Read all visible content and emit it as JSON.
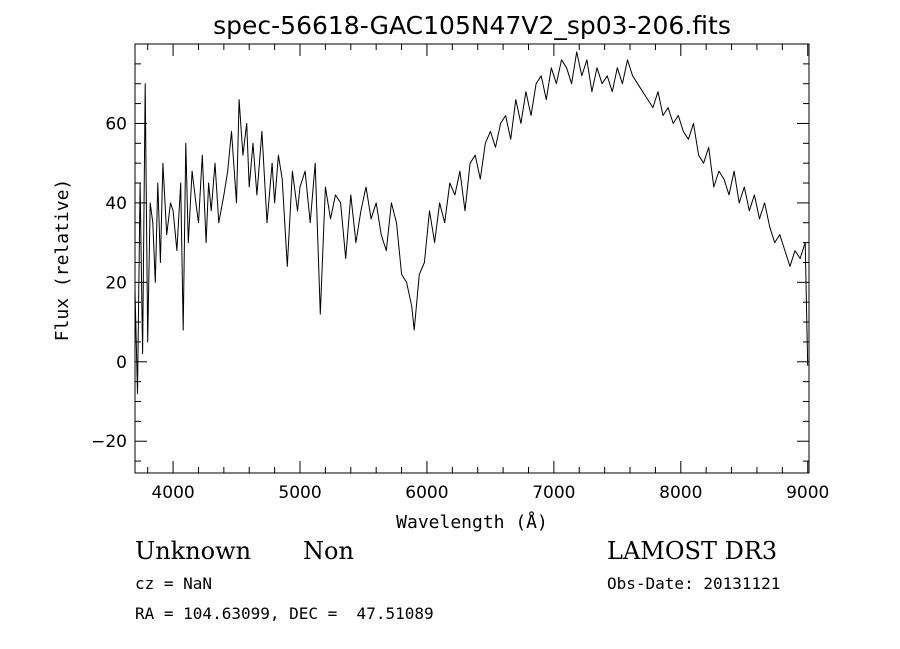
{
  "chart_data": {
    "type": "line",
    "title": "spec-56618-GAC105N47V2_sp03-206.fits",
    "xlabel": "Wavelength (Å)",
    "ylabel": "Flux (relative)",
    "xlim": [
      3700,
      9010
    ],
    "ylim": [
      -28,
      80
    ],
    "xticks": [
      4000,
      5000,
      6000,
      7000,
      8000,
      9000
    ],
    "yticks": [
      -20,
      0,
      20,
      40,
      60
    ],
    "grid": false,
    "series": [
      {
        "x": [
          3700,
          3720,
          3740,
          3760,
          3780,
          3800,
          3820,
          3840,
          3860,
          3880,
          3900,
          3920,
          3950,
          3980,
          4000,
          4030,
          4060,
          4080,
          4100,
          4120,
          4150,
          4180,
          4200,
          4230,
          4260,
          4280,
          4300,
          4330,
          4360,
          4400,
          4430,
          4460,
          4500,
          4520,
          4550,
          4580,
          4600,
          4630,
          4660,
          4700,
          4740,
          4780,
          4800,
          4830,
          4860,
          4900,
          4940,
          4980,
          5000,
          5040,
          5080,
          5120,
          5160,
          5200,
          5240,
          5280,
          5320,
          5360,
          5400,
          5440,
          5480,
          5520,
          5560,
          5600,
          5640,
          5680,
          5720,
          5760,
          5800,
          5840,
          5880,
          5900,
          5940,
          5980,
          6020,
          6060,
          6100,
          6140,
          6180,
          6220,
          6260,
          6300,
          6340,
          6380,
          6420,
          6460,
          6500,
          6540,
          6580,
          6620,
          6660,
          6700,
          6740,
          6780,
          6820,
          6860,
          6900,
          6940,
          6980,
          7020,
          7060,
          7100,
          7140,
          7180,
          7220,
          7260,
          7300,
          7340,
          7380,
          7420,
          7460,
          7500,
          7540,
          7580,
          7620,
          7660,
          7700,
          7740,
          7780,
          7820,
          7860,
          7900,
          7940,
          7980,
          8020,
          8060,
          8100,
          8140,
          8180,
          8220,
          8260,
          8300,
          8340,
          8380,
          8420,
          8460,
          8500,
          8540,
          8580,
          8620,
          8660,
          8700,
          8740,
          8780,
          8820,
          8860,
          8900,
          8940,
          8980,
          9000
        ],
        "y": [
          18,
          -8,
          45,
          2,
          70,
          5,
          40,
          35,
          20,
          45,
          25,
          50,
          32,
          40,
          38,
          28,
          45,
          8,
          55,
          30,
          48,
          40,
          35,
          52,
          30,
          45,
          38,
          50,
          35,
          42,
          48,
          58,
          40,
          66,
          52,
          60,
          44,
          55,
          42,
          58,
          35,
          50,
          40,
          52,
          46,
          24,
          48,
          38,
          44,
          48,
          35,
          50,
          12,
          44,
          36,
          42,
          40,
          26,
          42,
          30,
          38,
          44,
          36,
          40,
          32,
          28,
          40,
          35,
          22,
          20,
          14,
          8,
          22,
          25,
          38,
          30,
          40,
          35,
          45,
          42,
          48,
          38,
          50,
          52,
          46,
          55,
          58,
          54,
          60,
          62,
          56,
          66,
          60,
          68,
          62,
          70,
          72,
          66,
          74,
          70,
          76,
          74,
          70,
          78,
          72,
          76,
          68,
          74,
          70,
          72,
          68,
          74,
          70,
          76,
          72,
          70,
          68,
          66,
          64,
          68,
          62,
          64,
          60,
          62,
          58,
          56,
          60,
          52,
          50,
          54,
          44,
          48,
          46,
          42,
          48,
          40,
          44,
          38,
          42,
          36,
          40,
          34,
          30,
          32,
          28,
          24,
          28,
          26,
          30,
          -1
        ]
      }
    ]
  },
  "info": {
    "object_class": "Unknown",
    "subclass": "Non",
    "survey": "LAMOST DR3",
    "cz_text": "cz = NaN",
    "obs_date_text": "Obs-Date: 20131121",
    "coords_text": "RA = 104.63099, DEC =  47.51089"
  }
}
